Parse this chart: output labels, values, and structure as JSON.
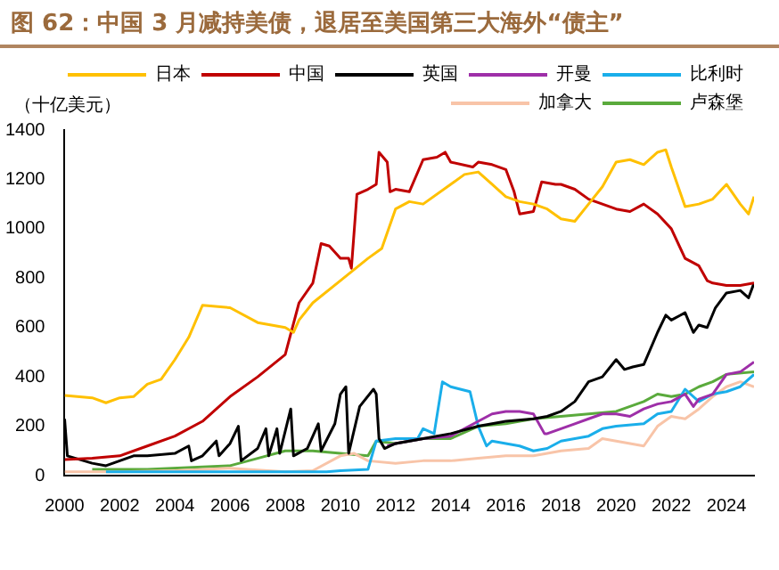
{
  "chart_data": {
    "type": "line",
    "title": "图 62：中国 3 月减持美债，退居至美国第三大海外“债主”",
    "ylabel": "（十亿美元）",
    "xlim": [
      2000,
      2025
    ],
    "xticks": [
      2000,
      2002,
      2004,
      2006,
      2008,
      2010,
      2012,
      2014,
      2016,
      2018,
      2020,
      2022,
      2024
    ],
    "ylim": [
      0,
      1400
    ],
    "yticks": [
      0,
      200,
      400,
      600,
      800,
      1000,
      1200,
      1400
    ],
    "grid": false,
    "legend": "top",
    "marker": "none",
    "line_style": "solid",
    "series": [
      {
        "name": "日本",
        "color": "#ffc000",
        "x": [
          2000,
          2001,
          2001.5,
          2002,
          2002.5,
          2003,
          2003.5,
          2004,
          2004.5,
          2005,
          2006,
          2007,
          2008,
          2008.3,
          2008.5,
          2009,
          2010,
          2011,
          2011.5,
          2012,
          2012.5,
          2013,
          2014,
          2014.5,
          2015,
          2015.5,
          2016,
          2016.5,
          2017,
          2017.5,
          2018,
          2018.5,
          2019,
          2019.5,
          2020,
          2020.5,
          2021,
          2021.5,
          2021.8,
          2022,
          2022.5,
          2023,
          2023.5,
          2024,
          2024.5,
          2024.8,
          2025
        ],
        "values": [
          325,
          315,
          295,
          315,
          320,
          370,
          390,
          470,
          560,
          690,
          680,
          620,
          600,
          580,
          630,
          700,
          790,
          880,
          920,
          1080,
          1110,
          1100,
          1180,
          1220,
          1230,
          1180,
          1130,
          1110,
          1100,
          1080,
          1040,
          1030,
          1100,
          1170,
          1270,
          1280,
          1260,
          1310,
          1320,
          1250,
          1090,
          1100,
          1120,
          1180,
          1100,
          1060,
          1130
        ]
      },
      {
        "name": "中国",
        "color": "#c00000",
        "x": [
          2000,
          2001,
          2002,
          2003,
          2004,
          2005,
          2006,
          2007,
          2008,
          2008.5,
          2009,
          2009.3,
          2009.6,
          2010,
          2010.3,
          2010.4,
          2010.6,
          2011,
          2011.3,
          2011.4,
          2011.7,
          2011.8,
          2012,
          2012.5,
          2013,
          2013.5,
          2013.8,
          2014,
          2014.8,
          2015,
          2015.5,
          2016,
          2016.3,
          2016.5,
          2017,
          2017.3,
          2017.8,
          2018,
          2018.5,
          2019,
          2020,
          2020.5,
          2021,
          2021.5,
          2022,
          2022.5,
          2023,
          2023.3,
          2023.5,
          2024,
          2024.5,
          2025
        ],
        "values": [
          65,
          70,
          80,
          120,
          160,
          220,
          320,
          400,
          490,
          700,
          780,
          940,
          930,
          880,
          880,
          840,
          1140,
          1160,
          1180,
          1310,
          1270,
          1150,
          1160,
          1150,
          1280,
          1290,
          1310,
          1270,
          1250,
          1270,
          1260,
          1240,
          1150,
          1060,
          1070,
          1190,
          1180,
          1180,
          1160,
          1120,
          1080,
          1070,
          1100,
          1060,
          1000,
          880,
          850,
          790,
          780,
          770,
          770,
          780
        ]
      },
      {
        "name": "英国",
        "color": "#000000",
        "x": [
          2000,
          2000.1,
          2001,
          2001.5,
          2002,
          2002.5,
          2003,
          2004,
          2004.5,
          2004.6,
          2005,
          2005.5,
          2005.6,
          2006,
          2006.3,
          2006.4,
          2007,
          2007.3,
          2007.4,
          2007.7,
          2007.8,
          2008.2,
          2008.3,
          2008.8,
          2009.2,
          2009.3,
          2009.8,
          2010,
          2010.2,
          2010.3,
          2010.7,
          2011.2,
          2011.3,
          2011.4,
          2011.6,
          2012,
          2013,
          2014,
          2015,
          2016,
          2017,
          2017.5,
          2018,
          2018.5,
          2019,
          2019.5,
          2020,
          2020.3,
          2020.6,
          2021,
          2021.5,
          2021.8,
          2022,
          2022.5,
          2022.8,
          2023,
          2023.3,
          2023.6,
          2024,
          2024.5,
          2024.8,
          2025
        ],
        "values": [
          230,
          80,
          50,
          40,
          60,
          80,
          80,
          90,
          120,
          60,
          80,
          140,
          80,
          130,
          200,
          60,
          110,
          190,
          80,
          190,
          90,
          270,
          80,
          110,
          210,
          100,
          210,
          330,
          360,
          90,
          280,
          350,
          330,
          150,
          110,
          130,
          150,
          170,
          200,
          220,
          230,
          240,
          260,
          300,
          380,
          400,
          470,
          430,
          440,
          450,
          580,
          650,
          630,
          660,
          580,
          610,
          600,
          680,
          740,
          750,
          720,
          780
        ]
      },
      {
        "name": "开曼",
        "color": "#9e2fa8",
        "x": [
          2011.7,
          2012,
          2013,
          2014,
          2014.5,
          2015,
          2015.5,
          2016,
          2016.5,
          2017,
          2017.4,
          2017.5,
          2018,
          2018.5,
          2019,
          2019.5,
          2020,
          2020.5,
          2021,
          2021.5,
          2022,
          2022.5,
          2022.8,
          2023,
          2023.5,
          2024,
          2024.5,
          2025
        ],
        "values": [
          120,
          130,
          150,
          160,
          190,
          220,
          250,
          260,
          260,
          250,
          170,
          170,
          190,
          210,
          230,
          250,
          250,
          240,
          270,
          290,
          300,
          330,
          280,
          310,
          330,
          410,
          420,
          460
        ]
      },
      {
        "name": "比利时",
        "color": "#1aaeea",
        "x": [
          2001.5,
          2004,
          2006,
          2008,
          2009.5,
          2010,
          2011,
          2011.3,
          2012,
          2012.8,
          2013,
          2013.4,
          2013.7,
          2014,
          2014.7,
          2015,
          2015.3,
          2015.5,
          2016,
          2016.5,
          2017,
          2017.5,
          2018,
          2018.5,
          2019,
          2019.5,
          2020,
          2021,
          2021.5,
          2022,
          2022.5,
          2023,
          2023.5,
          2024,
          2024.5,
          2025
        ],
        "values": [
          15,
          15,
          15,
          15,
          15,
          20,
          25,
          140,
          150,
          150,
          190,
          170,
          380,
          360,
          340,
          200,
          120,
          140,
          130,
          120,
          100,
          110,
          140,
          150,
          160,
          190,
          200,
          210,
          250,
          260,
          350,
          300,
          330,
          340,
          360,
          410
        ]
      },
      {
        "name": "加拿大",
        "color": "#f8c4a8",
        "x": [
          2000,
          2002,
          2004,
          2006,
          2008,
          2009,
          2010,
          2010.5,
          2011,
          2012,
          2013,
          2014,
          2015,
          2016,
          2017,
          2018,
          2019,
          2019.5,
          2020,
          2020.5,
          2021,
          2021.5,
          2022,
          2022.5,
          2023,
          2023.5,
          2024,
          2024.5,
          2025
        ],
        "values": [
          15,
          15,
          20,
          30,
          15,
          20,
          80,
          90,
          60,
          50,
          60,
          60,
          70,
          80,
          80,
          100,
          110,
          150,
          140,
          130,
          120,
          200,
          240,
          230,
          270,
          320,
          360,
          380,
          360
        ]
      },
      {
        "name": "卢森堡",
        "color": "#5aaa3c",
        "x": [
          2001,
          2003,
          2005,
          2006,
          2007,
          2008,
          2009,
          2010,
          2011,
          2011.3,
          2012,
          2013,
          2014,
          2015,
          2016,
          2017,
          2018,
          2019,
          2020,
          2021,
          2021.5,
          2022,
          2022.5,
          2023,
          2023.5,
          2024,
          2025
        ],
        "values": [
          25,
          25,
          35,
          40,
          70,
          100,
          100,
          90,
          80,
          140,
          130,
          150,
          150,
          200,
          210,
          230,
          240,
          250,
          260,
          300,
          330,
          320,
          330,
          360,
          380,
          410,
          420
        ]
      }
    ]
  }
}
